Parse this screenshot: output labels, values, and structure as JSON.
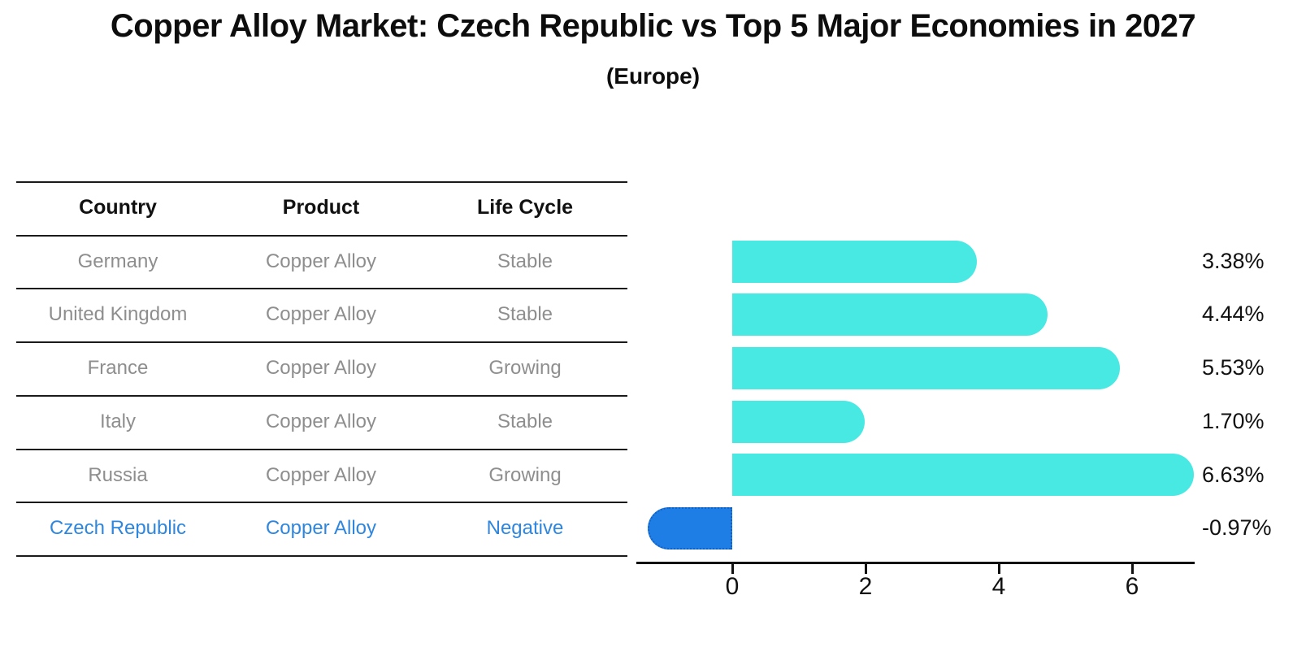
{
  "title": "Copper Alloy Market: Czech Republic vs Top 5 Major Economies in 2027",
  "subtitle": "(Europe)",
  "table": {
    "columns": [
      "Country",
      "Product",
      "Life Cycle"
    ],
    "rows": [
      {
        "country": "Germany",
        "product": "Copper Alloy",
        "life_cycle": "Stable",
        "highlight": false
      },
      {
        "country": "United Kingdom",
        "product": "Copper Alloy",
        "life_cycle": "Stable",
        "highlight": false
      },
      {
        "country": "France",
        "product": "Copper Alloy",
        "life_cycle": "Growing",
        "highlight": false
      },
      {
        "country": "Italy",
        "product": "Copper Alloy",
        "life_cycle": "Stable",
        "highlight": false
      },
      {
        "country": "Russia",
        "product": "Copper Alloy",
        "life_cycle": "Growing",
        "highlight": false
      },
      {
        "country": "Czech Republic",
        "product": "Copper Alloy",
        "life_cycle": "Negative",
        "highlight": true
      }
    ]
  },
  "chart_data": {
    "type": "bar",
    "orientation": "horizontal",
    "title": "Copper Alloy Market: Czech Republic vs Top 5 Major Economies in 2027 (Europe)",
    "categories": [
      "Germany",
      "United Kingdom",
      "France",
      "Italy",
      "Russia",
      "Czech Republic"
    ],
    "values": [
      3.38,
      4.44,
      5.53,
      1.7,
      6.63,
      -0.97
    ],
    "value_labels": [
      "3.38%",
      "4.44%",
      "5.53%",
      "1.70%",
      "6.63%",
      "-0.97%"
    ],
    "xticks": [
      0,
      2,
      4,
      6
    ],
    "xlim": [
      -1.44,
      6.94
    ],
    "grid": false,
    "legend": "none",
    "colors": {
      "bar_positive": "#48e9e3",
      "bar_negative_fill": "#1e7ee6",
      "bar_negative_border": "#1262c4",
      "highlight_text": "#2e86de",
      "row_text": "#8e8e8e",
      "axis_and_headers": "#111111"
    }
  }
}
